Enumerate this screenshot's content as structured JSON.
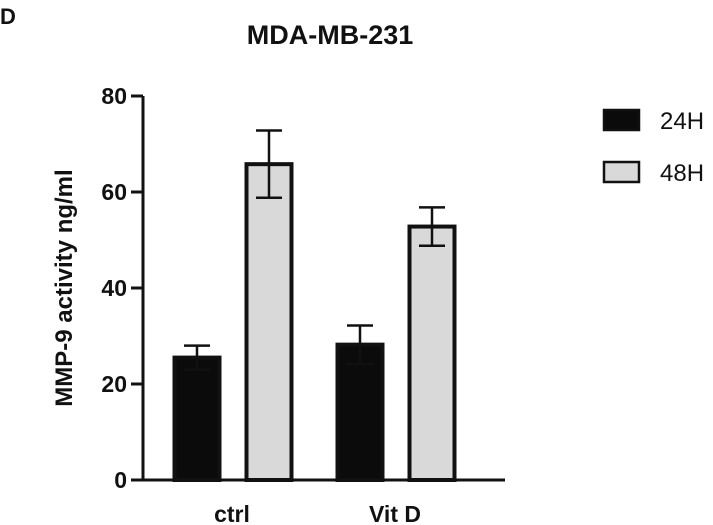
{
  "panel_label": "D",
  "chart_data": {
    "type": "bar",
    "title": "MDA-MB-231",
    "xlabel": "",
    "ylabel": "MMP-9 activity ng/ml",
    "ylim": [
      0,
      80
    ],
    "yticks": [
      0,
      20,
      40,
      60,
      80
    ],
    "categories": [
      "ctrl",
      "Vit D"
    ],
    "series": [
      {
        "name": "24H",
        "values": [
          25.5,
          28.2
        ],
        "errors": [
          2.5,
          4.0
        ],
        "color": "#0b0b0b"
      },
      {
        "name": "48H",
        "values": [
          65.8,
          52.8
        ],
        "errors": [
          7.0,
          4.0
        ],
        "color": "#d9d9d9"
      }
    ],
    "legend_position": "top-right",
    "grid": false
  }
}
